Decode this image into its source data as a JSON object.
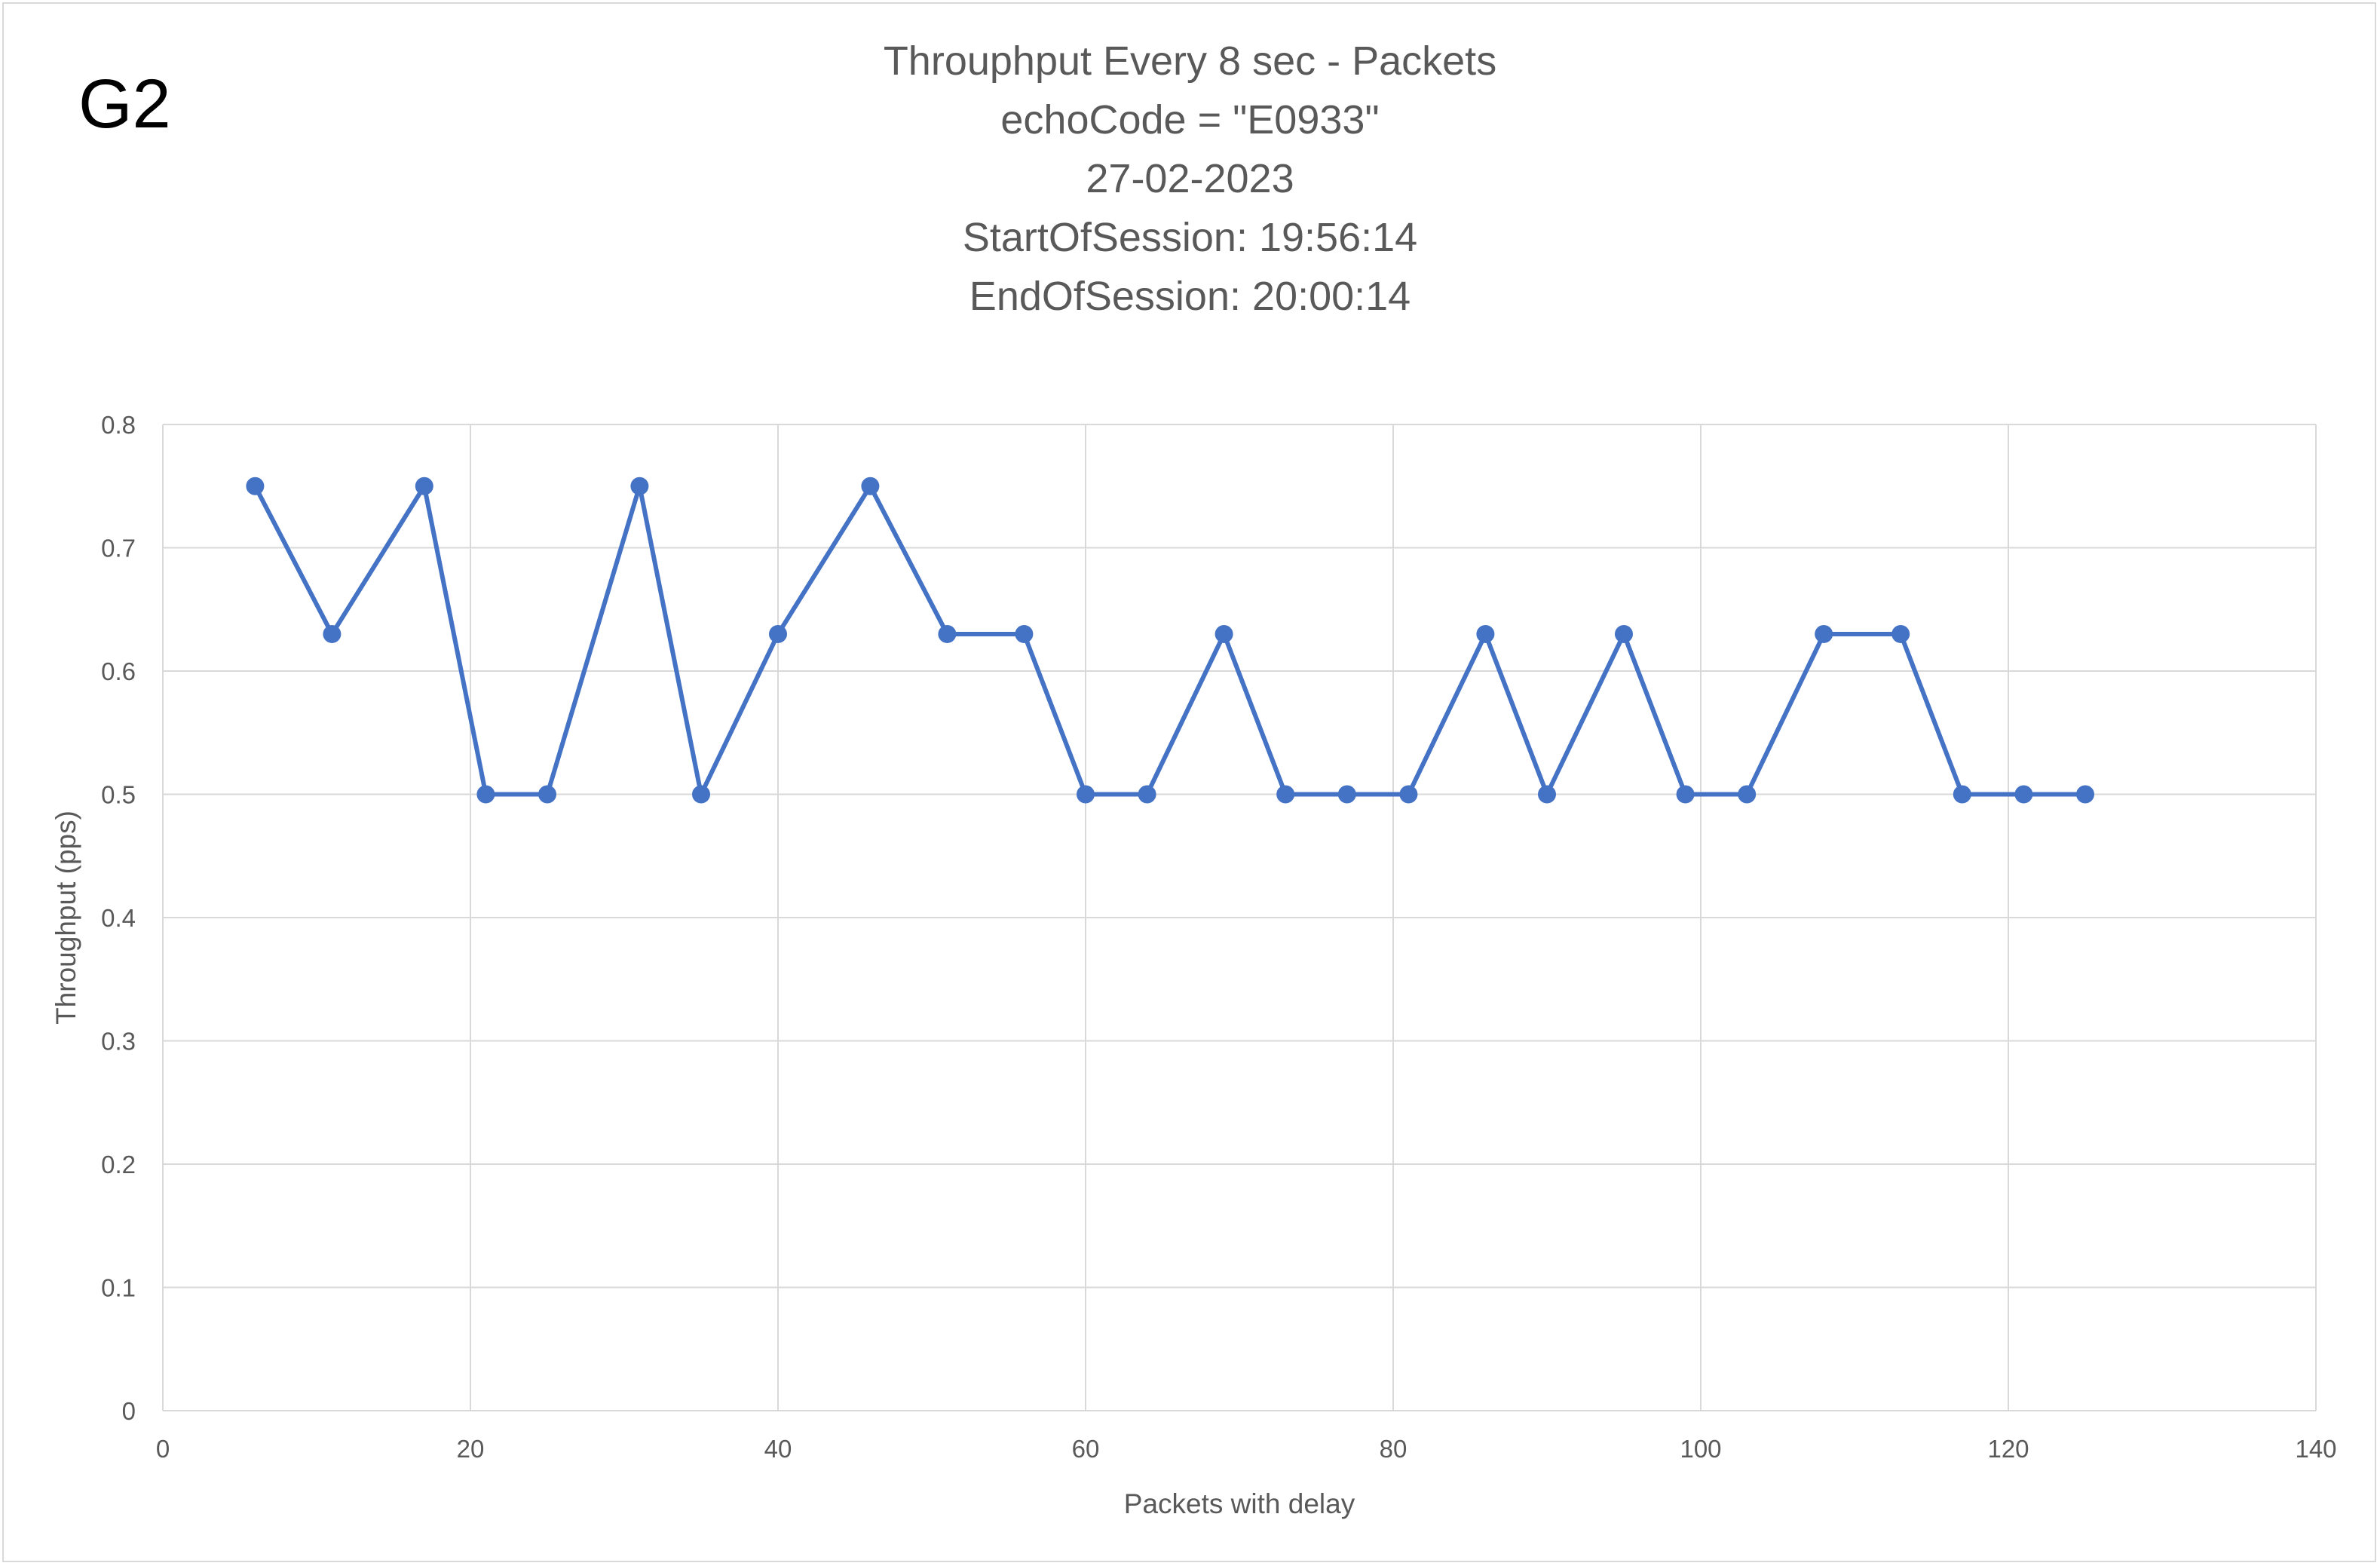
{
  "badge": "G2",
  "chart_data": {
    "type": "line",
    "title_lines": [
      "Throuphput Every 8 sec - Packets",
      "echoCode = \"E0933\"",
      "27-02-2023",
      "StartOfSession: 19:56:14",
      "EndOfSession: 20:00:14"
    ],
    "xlabel": "Packets with delay",
    "ylabel": "Throughput (pps)",
    "xlim": [
      0,
      140
    ],
    "ylim": [
      0,
      0.8
    ],
    "xticks": [
      0,
      20,
      40,
      60,
      80,
      100,
      120,
      140
    ],
    "yticks": [
      0,
      0.1,
      0.2,
      0.3,
      0.4,
      0.5,
      0.6,
      0.7,
      0.8
    ],
    "ytick_labels": [
      "0",
      "0.1",
      "0.2",
      "0.3",
      "0.4",
      "0.5",
      "0.6",
      "0.7",
      "0.8"
    ],
    "grid": true,
    "legend": "none",
    "series_color": "#4472c4",
    "series": [
      {
        "x": [
          6,
          11,
          17,
          21,
          25,
          31,
          35,
          40,
          46,
          51,
          56,
          60,
          64,
          69,
          73,
          77,
          81,
          86,
          90,
          95,
          99,
          103,
          108,
          113,
          117,
          121,
          125
        ],
        "y": [
          0.75,
          0.63,
          0.75,
          0.5,
          0.5,
          0.75,
          0.5,
          0.63,
          0.75,
          0.63,
          0.63,
          0.5,
          0.5,
          0.63,
          0.5,
          0.5,
          0.5,
          0.63,
          0.5,
          0.63,
          0.5,
          0.5,
          0.63,
          0.63,
          0.5,
          0.5,
          0.5
        ]
      }
    ]
  }
}
